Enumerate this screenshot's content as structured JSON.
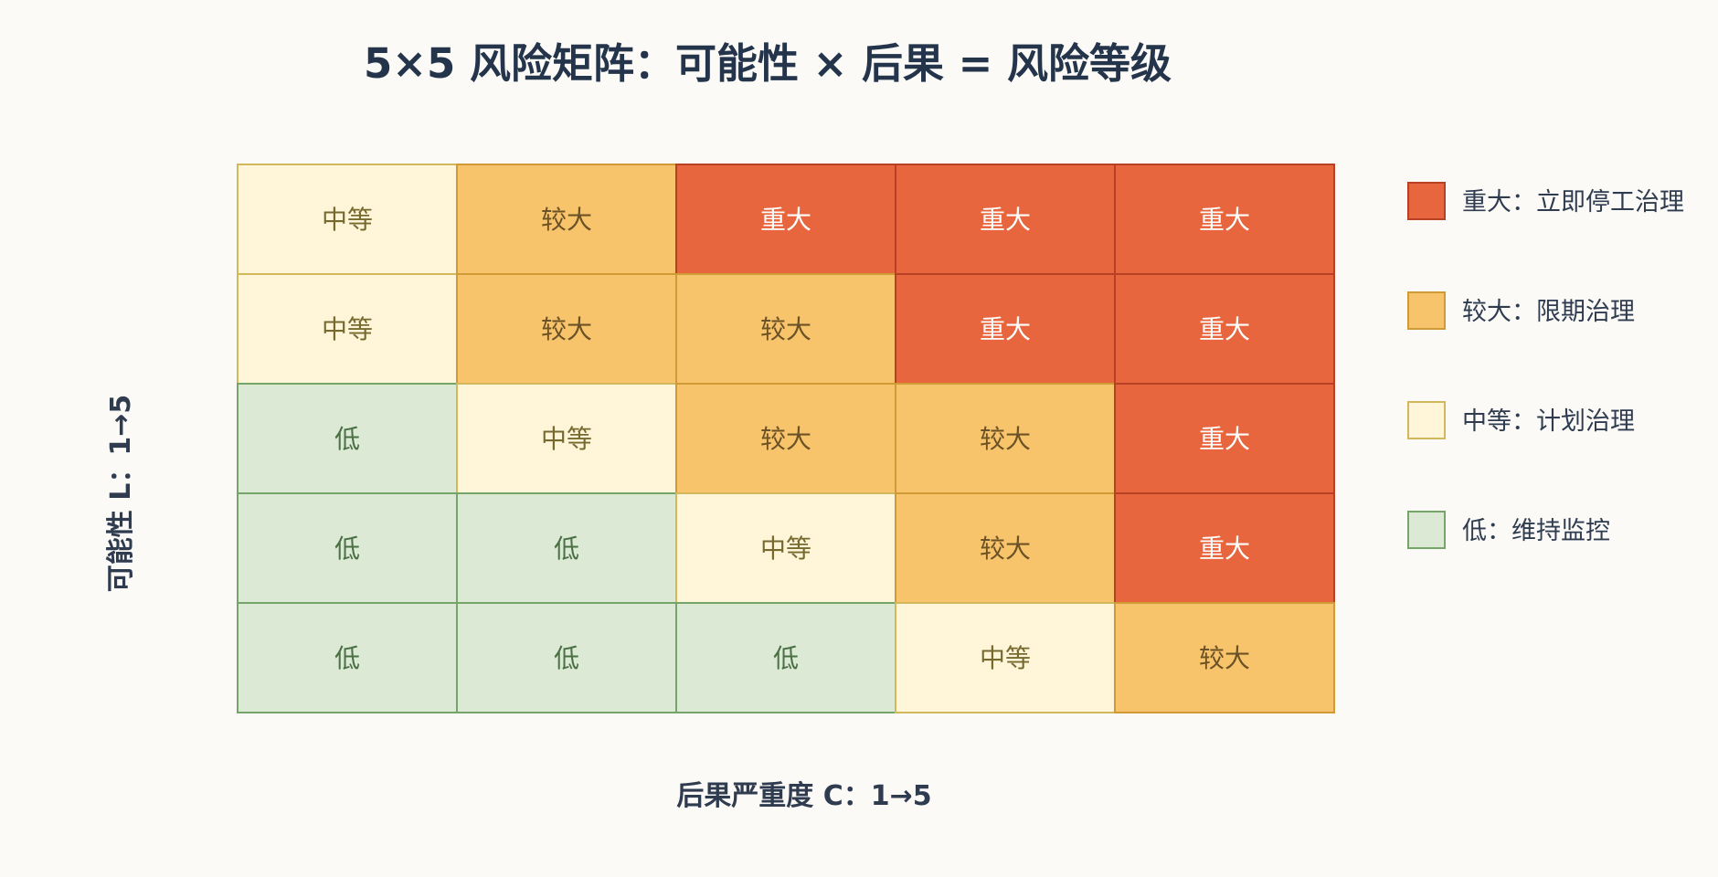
{
  "chart_data": {
    "type": "heatmap",
    "title": "5×5 风险矩阵：可能性 × 后果 = 风险等级",
    "xlabel": "后果严重度 C：1→5",
    "ylabel": "可能性 L：1→5",
    "grid": true,
    "legend_position": "right",
    "rows_top_to_bottom": [
      [
        "中等",
        "较大",
        "重大",
        "重大",
        "重大"
      ],
      [
        "中等",
        "较大",
        "较大",
        "重大",
        "重大"
      ],
      [
        "低",
        "中等",
        "较大",
        "较大",
        "重大"
      ],
      [
        "低",
        "低",
        "中等",
        "较大",
        "重大"
      ],
      [
        "低",
        "低",
        "低",
        "中等",
        "较大"
      ]
    ],
    "levels": [
      {
        "name": "重大",
        "legend": "重大：立即停工治理",
        "fill": "#e8663e",
        "stroke": "#b84024",
        "text": "#ffffff"
      },
      {
        "name": "较大",
        "legend": "较大：限期治理",
        "fill": "#f8c46b",
        "stroke": "#d09a37",
        "text": "#6d5226"
      },
      {
        "name": "中等",
        "legend": "中等：计划治理",
        "fill": "#fff6d9",
        "stroke": "#d2b75b",
        "text": "#76692f"
      },
      {
        "name": "低",
        "legend": "低：维持监控",
        "fill": "#dce9d5",
        "stroke": "#76a56a",
        "text": "#496f43"
      }
    ]
  }
}
